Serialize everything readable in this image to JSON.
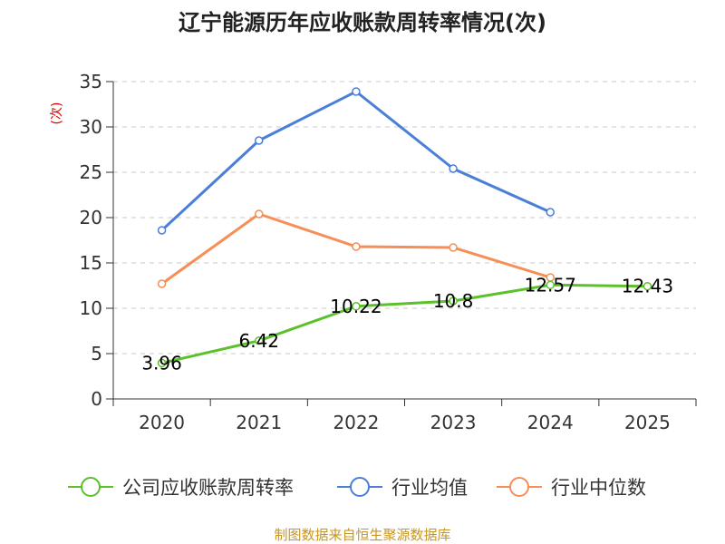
{
  "chart_data": {
    "type": "line",
    "title": "辽宁能源历年应收账款周转率情况(次)",
    "ylabel": "(次)",
    "xlabel": "",
    "categories": [
      "2020",
      "2021",
      "2022",
      "2023",
      "2024",
      "2025"
    ],
    "ylim": [
      0,
      35
    ],
    "yticks": [
      0,
      5,
      10,
      15,
      20,
      25,
      30,
      35
    ],
    "grid": true,
    "legend_position": "bottom",
    "series": [
      {
        "name": "公司应收账款周转率",
        "color": "#5bc12b",
        "values": [
          3.96,
          6.42,
          10.22,
          10.8,
          12.57,
          12.43
        ],
        "data_labels": [
          "3.96",
          "6.42",
          "10.22",
          "10.8",
          "12.57",
          "12.43"
        ]
      },
      {
        "name": "行业均值",
        "color": "#4a7fd8",
        "values": [
          18.6,
          28.5,
          33.9,
          25.4,
          20.6,
          null
        ]
      },
      {
        "name": "行业中位数",
        "color": "#f68e55",
        "values": [
          12.7,
          20.4,
          16.8,
          16.7,
          13.4,
          null
        ]
      }
    ]
  },
  "footer": {
    "source": "制图数据来自恒生聚源数据库"
  }
}
